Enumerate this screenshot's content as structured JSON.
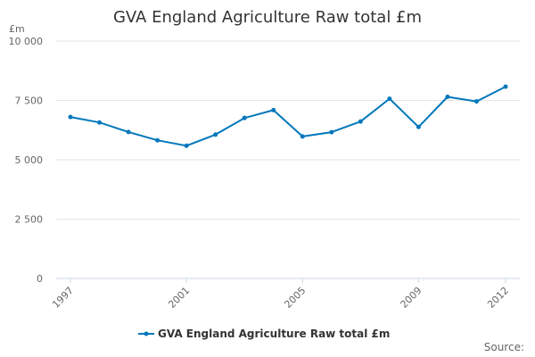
{
  "chart_data": {
    "type": "line",
    "title": "GVA England Agriculture Raw total £m",
    "ylabel": "£m",
    "xlabel": "",
    "ylim": [
      0,
      10000
    ],
    "yticks": [
      0,
      2500,
      5000,
      7500,
      10000
    ],
    "ytick_labels": [
      "0",
      "2 500",
      "5 000",
      "7 500",
      "10 000"
    ],
    "x": [
      1997,
      1998,
      1999,
      2000,
      2001,
      2002,
      2003,
      2004,
      2005,
      2006,
      2007,
      2008,
      2009,
      2010,
      2011,
      2012
    ],
    "xtick_labels": [
      "1997",
      "2001",
      "2005",
      "2009",
      "2012"
    ],
    "series": [
      {
        "name": "GVA England Agriculture Raw total £m",
        "color": "#0077bb",
        "values": [
          6800,
          6570,
          6170,
          5820,
          5590,
          6060,
          6760,
          7090,
          5980,
          6160,
          6610,
          7570,
          6380,
          7650,
          7460,
          8080
        ]
      }
    ],
    "grid": true,
    "legend_position": "bottom-center"
  },
  "footer": {
    "source_label": "Source:"
  }
}
